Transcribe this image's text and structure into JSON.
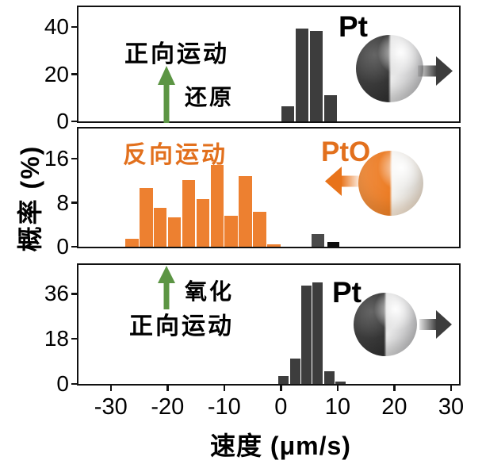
{
  "figure": {
    "background": "#ffffff",
    "colors": {
      "axis": "#111111",
      "dark_bar": "#3d3d3d",
      "gray_bar": "#4a4a4a",
      "black_bar": "#0d0d0d",
      "orange_bar": "#ed8030",
      "orange_text": "#e2701d",
      "green_arrow": "#5c9544",
      "dark_arrow": "#3d3d3d"
    }
  },
  "chart_data": {
    "type": "bar",
    "subtype": "histogram-stack-of-3-panels",
    "xlabel": "速度 (μm/s)",
    "ylabel": "概率 (%)",
    "x_ticks": [
      -30,
      -20,
      -10,
      0,
      10,
      20,
      30
    ],
    "xlim": [
      -35.7,
      31.4
    ],
    "grid": false,
    "legend": false,
    "panels": [
      {
        "name": "pt-reduction-forward",
        "y_ticks": [
          0,
          20,
          40
        ],
        "ylim": [
          0,
          48.5
        ],
        "annotations": {
          "motion": "正向运动",
          "reaction": "还原",
          "particle": "Pt",
          "motion_arrow": "green-up",
          "particle_arrow": "dark-right"
        },
        "series": [
          {
            "name": "Pt forward velocity",
            "color": "#3d3d3d",
            "bin_start": 0,
            "bin_width": 2.5,
            "values": [
              6.5,
              39.5,
              38.5,
              11
            ]
          }
        ]
      },
      {
        "name": "pto-backward",
        "y_ticks": [
          0,
          8,
          16
        ],
        "ylim": [
          0,
          21.5
        ],
        "annotations": {
          "motion": "反向运动",
          "particle": "PtO",
          "motion_arrow": null,
          "particle_arrow": "orange-left"
        },
        "series": [
          {
            "name": "PtO backward velocity",
            "color": "#ed8030",
            "bin_start": -27.5,
            "bin_width": 2.5,
            "values": [
              1.4,
              10.7,
              7.1,
              5.4,
              12.1,
              8.6,
              14.9,
              5.7,
              12.8,
              6.4,
              0.5
            ]
          },
          {
            "name": "residual forward gray",
            "color": "#4a4a4a",
            "bin_start": 5.3,
            "bin_width": 2.5,
            "values": [
              2.3
            ]
          },
          {
            "name": "residual forward black",
            "color": "#0d0d0d",
            "bin_start": 8.1,
            "bin_width": 2.3,
            "values": [
              0.85
            ]
          }
        ]
      },
      {
        "name": "pt-oxidation-forward",
        "y_ticks": [
          0,
          18,
          36
        ],
        "ylim": [
          0,
          47.5
        ],
        "annotations": {
          "motion": "正向运动",
          "reaction": "氧化",
          "particle": "Pt",
          "motion_arrow": "green-up",
          "particle_arrow": "dark-right"
        },
        "series": [
          {
            "name": "Pt forward velocity",
            "color": "#3d3d3d",
            "bin_start": -0.5,
            "bin_width": 2.0,
            "values": [
              3.2,
              10.2,
              39.3,
              40.5,
              5.2,
              0.8
            ]
          }
        ]
      }
    ]
  }
}
